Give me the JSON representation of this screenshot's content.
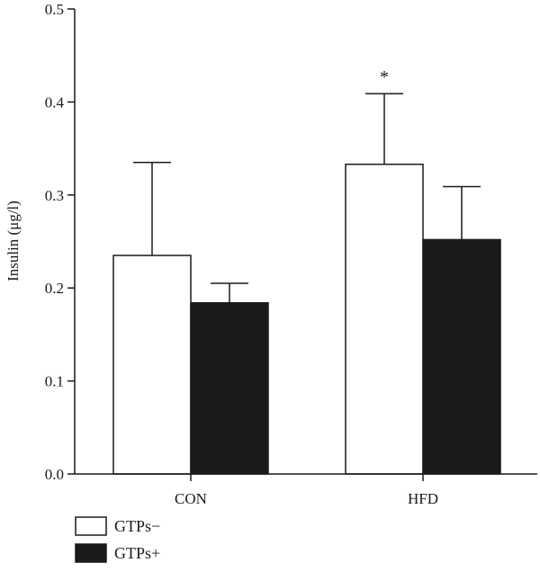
{
  "chart_data": {
    "type": "bar",
    "title": "",
    "xlabel": "",
    "ylabel": "Insulin (μg/l)",
    "ylim": [
      0,
      0.5
    ],
    "yticks": [
      "0.0",
      "0.1",
      "0.2",
      "0.3",
      "0.4",
      "0.5"
    ],
    "categories": [
      "CON",
      "HFD"
    ],
    "series": [
      {
        "name": "GTPs−",
        "values": [
          0.235,
          0.333
        ],
        "errors": [
          0.1,
          0.076
        ],
        "color": "#ffffff"
      },
      {
        "name": "GTPs+",
        "values": [
          0.184,
          0.252
        ],
        "errors": [
          0.021,
          0.057
        ],
        "color": "#1a1a1a"
      }
    ],
    "annotations": [
      {
        "text": "*",
        "category": "HFD",
        "series": 0
      }
    ],
    "legend_position": "bottom-left",
    "grid": false
  }
}
